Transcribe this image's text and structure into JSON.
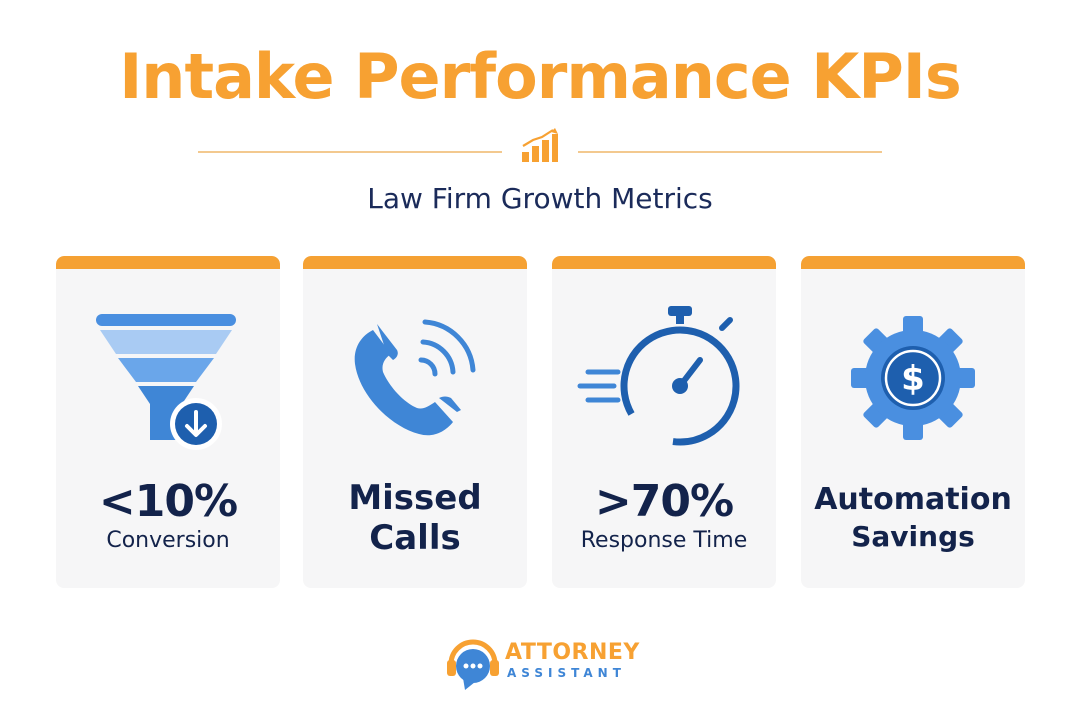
{
  "header": {
    "title": "Intake Performance KPIs",
    "subtitle": "Law Firm Growth Metrics"
  },
  "cards": [
    {
      "icon": "funnel-down-icon",
      "primary": "<10%",
      "secondary": "Conversion"
    },
    {
      "icon": "phone-ringing-icon",
      "line1": "Missed",
      "line2": "Calls"
    },
    {
      "icon": "stopwatch-icon",
      "primary": ">70%",
      "secondary": "Response Time"
    },
    {
      "icon": "gear-dollar-icon",
      "line1": "Automation",
      "line2": "Savings"
    }
  ],
  "logo": {
    "name": "ATTORNEY",
    "sub": "ASSISTANT"
  },
  "colors": {
    "accent_orange": "#f7a132",
    "navy": "#13234b",
    "blue": "#3f86d6",
    "card_bg": "#f6f6f7"
  }
}
